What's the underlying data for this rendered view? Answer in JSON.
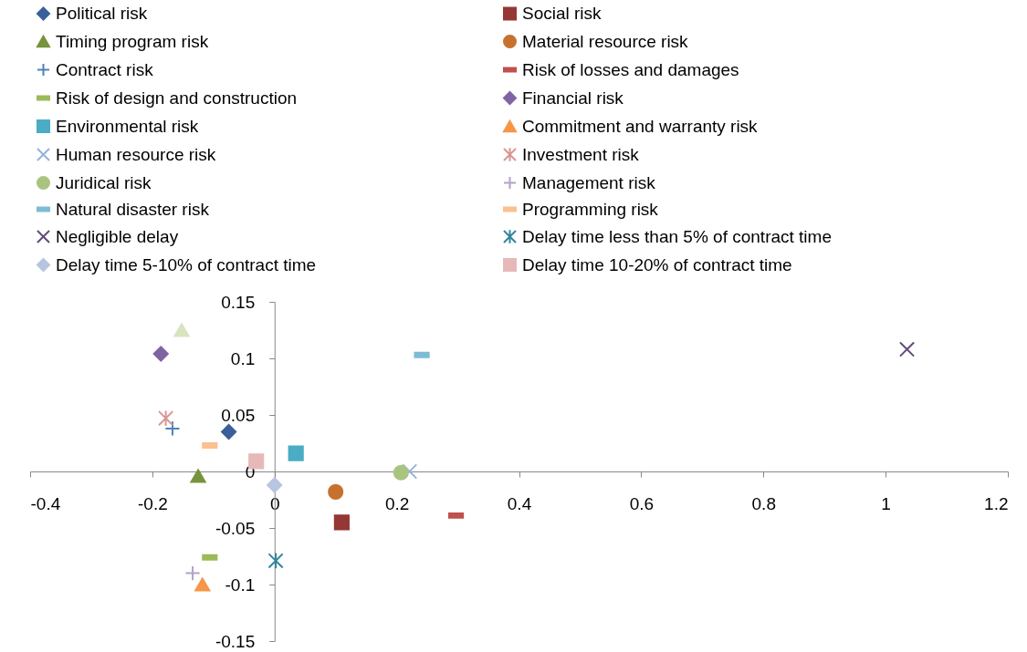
{
  "chart_data": {
    "type": "scatter",
    "xlim": [
      -0.4,
      1.2
    ],
    "xticks": [
      -0.4,
      -0.2,
      0,
      0.2,
      0.4,
      0.6,
      0.8,
      1,
      1.2
    ],
    "ylim": [
      -0.15,
      0.15
    ],
    "yticks": [
      -0.15,
      -0.1,
      -0.05,
      0,
      0.05,
      0.1,
      0.15
    ],
    "grid": false,
    "legend": "top",
    "series": [
      {
        "name": "Political risk",
        "color": "#3a5f9a",
        "marker": "diamond",
        "x": [
          -0.075
        ],
        "values": [
          0.035
        ]
      },
      {
        "name": "Social risk",
        "color": "#953735",
        "marker": "square",
        "x": [
          0.11
        ],
        "values": [
          -0.045
        ]
      },
      {
        "name": "Timing program risk",
        "color": "#77933c",
        "marker": "triangle",
        "x": [
          -0.125
        ],
        "values": [
          -0.004
        ]
      },
      {
        "name": "Material resource risk",
        "color": "#c6722e",
        "marker": "circle",
        "x": [
          0.1
        ],
        "values": [
          -0.018
        ]
      },
      {
        "name": "Contract risk",
        "color": "#4f81bd",
        "marker": "plus",
        "x": [
          -0.167
        ],
        "values": [
          0.038
        ]
      },
      {
        "name": "Risk of losses and damages",
        "color": "#c0504d",
        "x": [
          0.297
        ],
        "values": [
          -0.039
        ]
      },
      {
        "name": "Risk of design and construction",
        "color": "#9bbb59",
        "x": [
          -0.106
        ],
        "values": [
          -0.076
        ]
      },
      {
        "name": "Financial risk",
        "color": "#8064a2",
        "marker": "diamond",
        "x": [
          -0.186
        ],
        "values": [
          0.104
        ]
      },
      {
        "name": "Environmental risk",
        "color": "#4bacc6",
        "marker": "square",
        "x": [
          0.035
        ],
        "values": [
          0.016
        ]
      },
      {
        "name": "Commitment and warranty risk",
        "color": "#f79646",
        "marker": "triangle",
        "x": [
          -0.118
        ],
        "values": [
          -0.1
        ]
      },
      {
        "name": "Human resource risk",
        "color": "#95b3d7",
        "marker": "x",
        "x": [
          0.221
        ],
        "values": [
          0.0
        ]
      },
      {
        "name": "Investment risk",
        "color": "#d99694",
        "marker": "cross",
        "x": [
          -0.178
        ],
        "values": [
          0.047
        ]
      },
      {
        "name": "Juridical risk",
        "color": "#a9c47f",
        "marker": "circle",
        "x": [
          0.207
        ],
        "values": [
          -0.001
        ]
      },
      {
        "name": "Management risk",
        "color": "#b3a2c7",
        "marker": "plus",
        "x": [
          -0.134
        ],
        "values": [
          -0.09
        ]
      },
      {
        "name": "Natural disaster risk",
        "color": "#7ebcd6",
        "x": [
          0.241
        ],
        "values": [
          0.103
        ]
      },
      {
        "name": "Programming risk",
        "color": "#fac090",
        "x": [
          -0.106
        ],
        "values": [
          0.023
        ]
      },
      {
        "name": "Negligible delay",
        "color": "#5f497a",
        "marker": "x",
        "x": [
          1.035
        ],
        "values": [
          0.108
        ]
      },
      {
        "name": "Delay time less than 5% of contract time",
        "color": "#31859c",
        "marker": "cross",
        "x": [
          0.002
        ],
        "values": [
          -0.079
        ]
      },
      {
        "name": "Delay time 5-10% of contract time",
        "color": "#b7c5e0",
        "marker": "diamond",
        "x": [
          0.0
        ],
        "values": [
          -0.012
        ]
      },
      {
        "name": "Delay time 10-20% of contract time",
        "color": "#e6b9b8",
        "marker": "square",
        "x": [
          -0.03
        ],
        "values": [
          0.009
        ]
      },
      {
        "color": "#d7e4bd",
        "marker": "triangle",
        "x": [
          -0.152
        ],
        "values": [
          0.125
        ]
      }
    ]
  }
}
